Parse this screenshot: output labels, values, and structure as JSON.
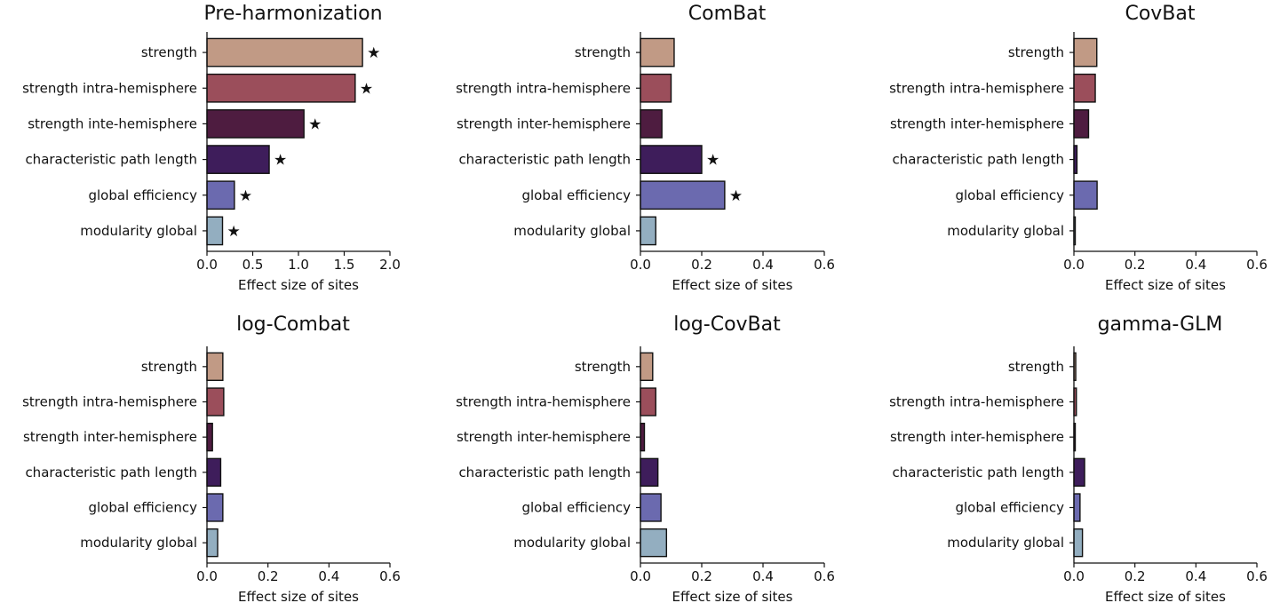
{
  "chart_data": [
    {
      "type": "bar",
      "orientation": "horizontal",
      "title": "Pre-harmonization",
      "xlabel": "Effect size of sites",
      "categories": [
        "strength",
        "strength intra-hemisphere",
        "strength inte-hemisphere",
        "characteristic path length",
        "global efficiency",
        "modularity global"
      ],
      "values": [
        1.7,
        1.62,
        1.06,
        0.68,
        0.3,
        0.17
      ],
      "significant": [
        true,
        true,
        true,
        true,
        true,
        true
      ],
      "xlim": [
        0,
        2.0
      ],
      "xticks": [
        "0.0",
        "0.5",
        "1.0",
        "1.5",
        "2.0"
      ],
      "xtick_values": [
        0,
        0.5,
        1.0,
        1.5,
        2.0
      ],
      "grid": false
    },
    {
      "type": "bar",
      "orientation": "horizontal",
      "title": "ComBat",
      "xlabel": "Effect size of sites",
      "categories": [
        "strength",
        "strength intra-hemisphere",
        "strength inter-hemisphere",
        "characteristic path length",
        "global efficiency",
        "modularity global"
      ],
      "values": [
        0.11,
        0.1,
        0.07,
        0.2,
        0.275,
        0.05
      ],
      "significant": [
        false,
        false,
        false,
        true,
        true,
        false
      ],
      "xlim": [
        0,
        0.6
      ],
      "xticks": [
        "0.0",
        "0.2",
        "0.4",
        "0.6"
      ],
      "xtick_values": [
        0,
        0.2,
        0.4,
        0.6
      ],
      "grid": false
    },
    {
      "type": "bar",
      "orientation": "horizontal",
      "title": "CovBat",
      "xlabel": "Effect size of sites",
      "categories": [
        "strength",
        "strength intra-hemisphere",
        "strength inter-hemisphere",
        "characteristic path length",
        "global efficiency",
        "modularity global"
      ],
      "values": [
        0.075,
        0.07,
        0.048,
        0.01,
        0.076,
        0.004
      ],
      "significant": [
        false,
        false,
        false,
        false,
        false,
        false
      ],
      "xlim": [
        0,
        0.6
      ],
      "xticks": [
        "0.0",
        "0.2",
        "0.4",
        "0.6"
      ],
      "xtick_values": [
        0,
        0.2,
        0.4,
        0.6
      ],
      "grid": false
    },
    {
      "type": "bar",
      "orientation": "horizontal",
      "title": "log-Combat",
      "xlabel": "Effect size of sites",
      "categories": [
        "strength",
        "strength intra-hemisphere",
        "strength inter-hemisphere",
        "characteristic path length",
        "global efficiency",
        "modularity global"
      ],
      "values": [
        0.052,
        0.055,
        0.018,
        0.045,
        0.052,
        0.035
      ],
      "significant": [
        false,
        false,
        false,
        false,
        false,
        false
      ],
      "xlim": [
        0,
        0.6
      ],
      "xticks": [
        "0.0",
        "0.2",
        "0.4",
        "0.6"
      ],
      "xtick_values": [
        0,
        0.2,
        0.4,
        0.6
      ],
      "grid": false
    },
    {
      "type": "bar",
      "orientation": "horizontal",
      "title": "log-CovBat",
      "xlabel": "Effect size of sites",
      "categories": [
        "strength",
        "strength intra-hemisphere",
        "strength inter-hemisphere",
        "characteristic path length",
        "global efficiency",
        "modularity global"
      ],
      "values": [
        0.04,
        0.05,
        0.013,
        0.057,
        0.067,
        0.085
      ],
      "significant": [
        false,
        false,
        false,
        false,
        false,
        false
      ],
      "xlim": [
        0,
        0.6
      ],
      "xticks": [
        "0.0",
        "0.2",
        "0.4",
        "0.6"
      ],
      "xtick_values": [
        0,
        0.2,
        0.4,
        0.6
      ],
      "grid": false
    },
    {
      "type": "bar",
      "orientation": "horizontal",
      "title": "gamma-GLM",
      "xlabel": "Effect size of sites",
      "categories": [
        "strength",
        "strength intra-hemisphere",
        "strength inter-hemisphere",
        "characteristic path length",
        "global efficiency",
        "modularity global"
      ],
      "values": [
        0.006,
        0.008,
        0.003,
        0.035,
        0.02,
        0.028
      ],
      "significant": [
        false,
        false,
        false,
        false,
        false,
        false
      ],
      "xlim": [
        0,
        0.6
      ],
      "xticks": [
        "0.0",
        "0.2",
        "0.4",
        "0.6"
      ],
      "xtick_values": [
        0,
        0.2,
        0.4,
        0.6
      ],
      "grid": false
    }
  ],
  "bar_colors": [
    "#c19a85",
    "#9b4e5b",
    "#4e1c40",
    "#3e1d5b",
    "#6b6aaf",
    "#93aec0"
  ],
  "significance_marker": "★",
  "legend": "none"
}
